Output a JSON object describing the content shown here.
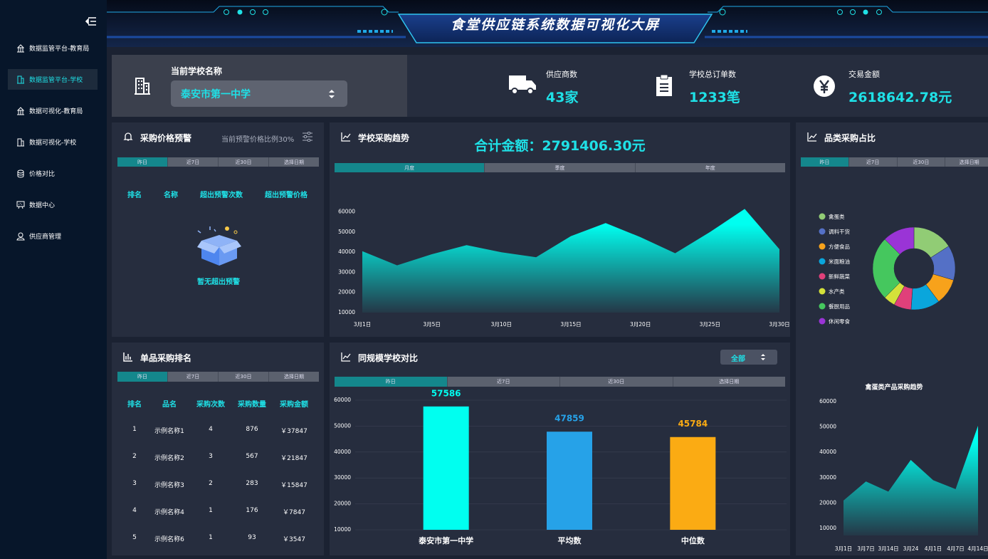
{
  "header": {
    "title": "食堂供应链系统数据可视化大屏"
  },
  "sidebar": {
    "items": [
      "数据监管平台-教育局",
      "数据监管平台-学校",
      "数据可视化-教育局",
      "数据可视化-学校",
      "价格对比",
      "数据中心",
      "供应商管理"
    ]
  },
  "school": {
    "label": "当前学校名称",
    "value": "泰安市第一中学"
  },
  "stats": [
    {
      "label": "供应商数",
      "value": "43家"
    },
    {
      "label": "学校总订单数",
      "value": "1233笔"
    },
    {
      "label": "交易金额",
      "value": "2618642.78元"
    }
  ],
  "price_alert": {
    "title": "采购价格预警",
    "note": "当前预警价格比例30%",
    "tabs": [
      "昨日",
      "近7日",
      "近30日",
      "选择日期"
    ],
    "columns": [
      "排名",
      "名称",
      "超出预警次数",
      "超出预警价格"
    ],
    "empty": "暂无超出预警"
  },
  "ranking": {
    "title": "单品采购排名",
    "tabs": [
      "昨日",
      "近7日",
      "近30日",
      "选择日期"
    ],
    "columns": [
      "排名",
      "品名",
      "采购次数",
      "采购数量",
      "采购金额"
    ],
    "rows": [
      [
        1,
        "示例名称1",
        4,
        876,
        "￥37847"
      ],
      [
        2,
        "示例名称2",
        3,
        567,
        "￥21847"
      ],
      [
        3,
        "示例名称3",
        2,
        283,
        "￥15847"
      ],
      [
        4,
        "示例名称4",
        1,
        176,
        "￥7847"
      ],
      [
        5,
        "示例名称6",
        1,
        93,
        "￥3547"
      ]
    ]
  },
  "chart_data": [
    {
      "type": "area",
      "title": "学校采购趋势",
      "subtitle": "合计金额：2791406.30元",
      "tabs": [
        "月度",
        "季度",
        "年度"
      ],
      "categories": [
        "3月1日",
        null,
        "3月5日",
        null,
        "3月10日",
        null,
        "3月15日",
        null,
        "3月20日",
        null,
        "3月25日",
        null,
        "3月30日"
      ],
      "values": [
        40500,
        33500,
        39000,
        43500,
        40000,
        37500,
        48000,
        54500,
        47500,
        39500,
        50000,
        61500,
        41500
      ],
      "color": "#00fff0",
      "ylim": [
        10000,
        62000
      ],
      "yticks": [
        10000,
        20000,
        30000,
        40000,
        50000,
        60000
      ]
    },
    {
      "type": "bar",
      "title": "同规模学校对比",
      "filter": "全部",
      "tabs": [
        "昨日",
        "近7日",
        "近30日",
        "选择日期"
      ],
      "categories": [
        "泰安市第一中学",
        "平均数",
        "中位数"
      ],
      "values": [
        57586,
        47859,
        45784
      ],
      "colors": [
        "#00fff0",
        "#26a2e8",
        "#fbab13"
      ],
      "ylim": [
        10000,
        60000
      ],
      "yticks": [
        10000,
        20000,
        30000,
        40000,
        50000,
        60000
      ],
      "grid": true
    },
    {
      "type": "pie",
      "title": "品类采购占比",
      "tabs": [
        "昨日",
        "近7日",
        "近30日",
        "选择日期"
      ],
      "categories": [
        "禽蛋类",
        "调料干货",
        "方便食品",
        "米面粮油",
        "新鲜蔬菜",
        "水产类",
        "餐厨用品",
        "休闲零食"
      ],
      "values": [
        14,
        12,
        9,
        10,
        6,
        4,
        22,
        11
      ],
      "colors": [
        "#91cc75",
        "#5470c6",
        "#f7a21b",
        "#0aa6dc",
        "#e0407a",
        "#d4e13a",
        "#45c75e",
        "#9a34d6"
      ]
    },
    {
      "type": "area",
      "title": "禽蛋类产品采购趋势",
      "categories": [
        "3月1日",
        "3月7日",
        "3月14日",
        "3月24",
        "4月1日",
        "4月7日",
        "4月14日"
      ],
      "values": [
        21000,
        28500,
        24500,
        37000,
        29000,
        25500,
        50500
      ],
      "color": "#00fff0",
      "ylim": [
        10000,
        60000
      ],
      "yticks": [
        10000,
        20000,
        30000,
        40000,
        50000,
        60000
      ]
    }
  ]
}
